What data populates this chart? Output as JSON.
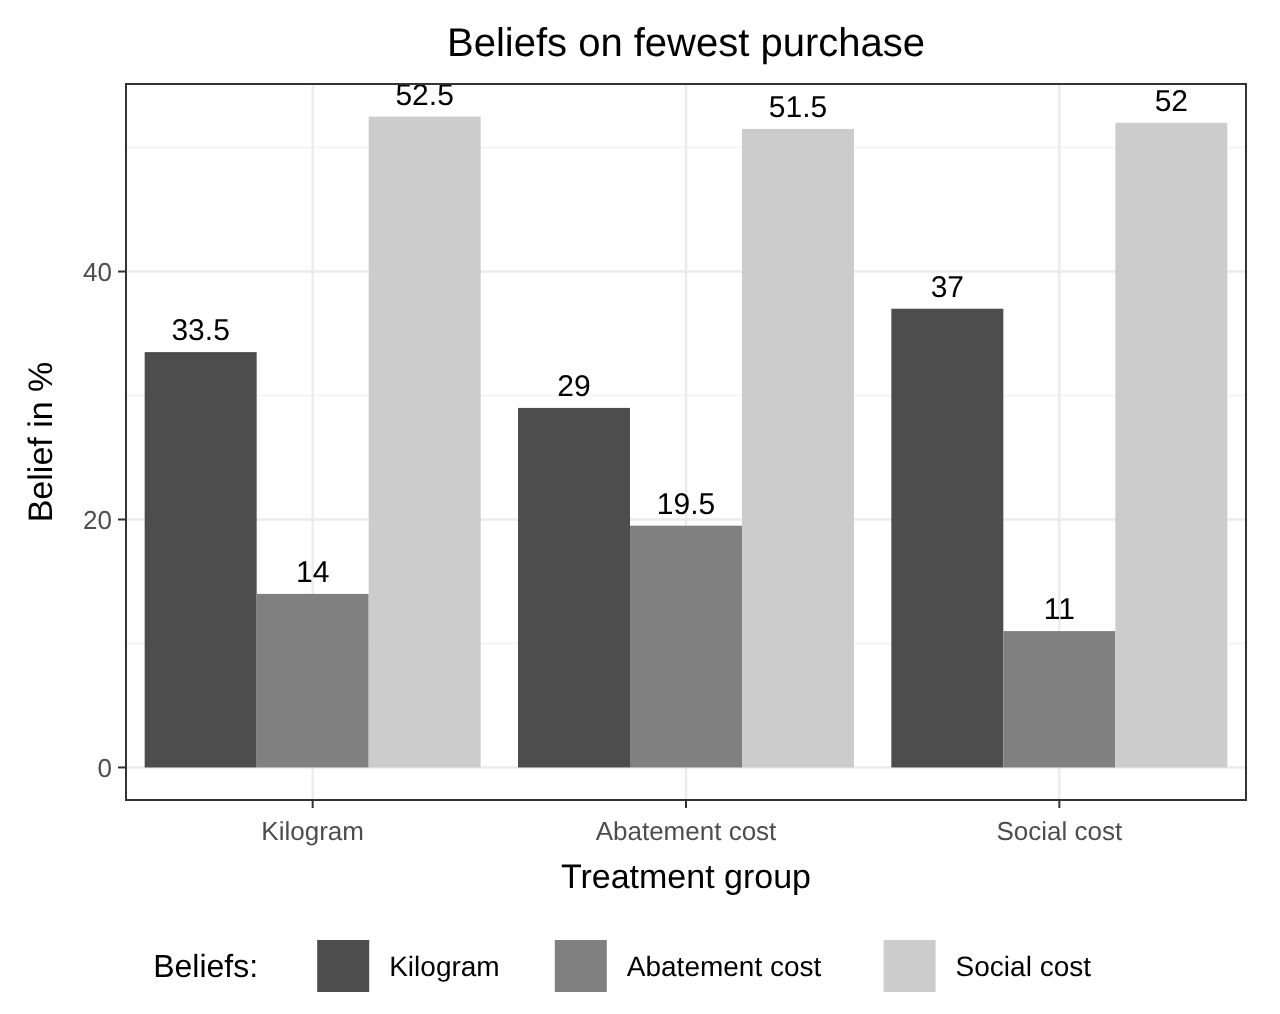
{
  "chart_data": {
    "type": "bar",
    "title": "Beliefs on fewest purchase",
    "xlabel": "Treatment group",
    "ylabel": "Belief in %",
    "legend_title": "Beliefs:",
    "categories": [
      "Kilogram",
      "Abatement cost",
      "Social cost"
    ],
    "series": [
      {
        "name": "Kilogram",
        "color": "#4d4d4d",
        "values": [
          33.5,
          29,
          37
        ]
      },
      {
        "name": "Abatement cost",
        "color": "#808080",
        "values": [
          14,
          19.5,
          11
        ]
      },
      {
        "name": "Social cost",
        "color": "#cccccc",
        "values": [
          52.5,
          51.5,
          52
        ]
      }
    ],
    "ylim": [
      -2.625,
      55.125
    ],
    "yticks": [
      0,
      20,
      40
    ],
    "grid": true,
    "legend": "bottom",
    "data_labels": true
  }
}
